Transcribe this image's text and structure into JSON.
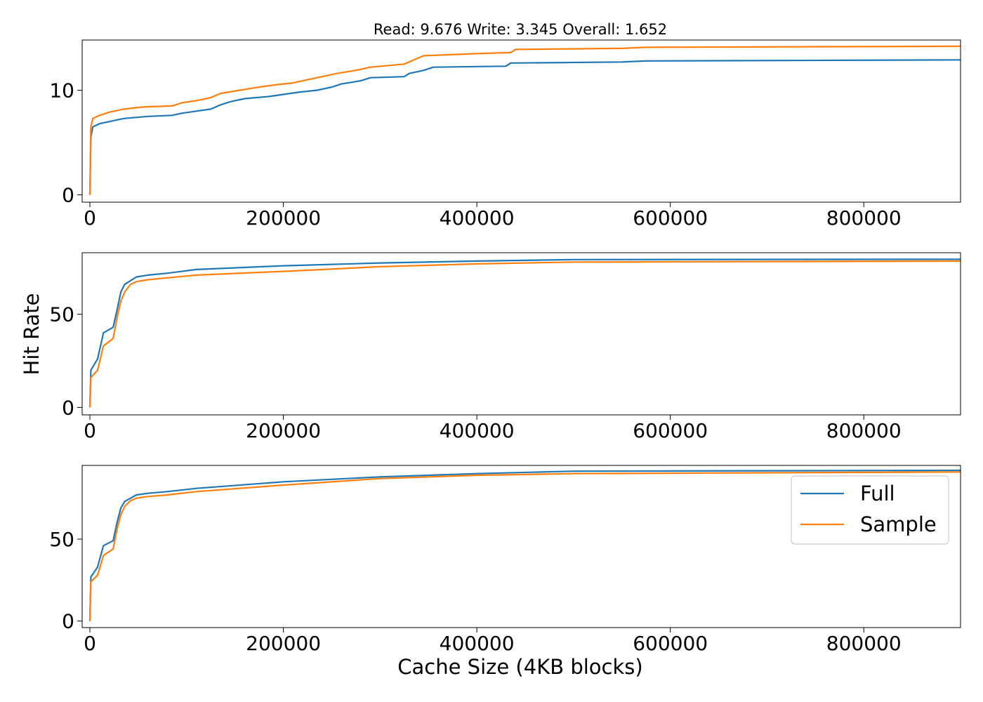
{
  "figure": {
    "title": "Read: 9.676 Write: 3.345 Overall: 1.652",
    "ylabel": "Hit Rate",
    "xlabel": "Cache Size (4KB blocks)"
  },
  "colors": {
    "full": "#1f77b4",
    "sample": "#ff7f0e"
  },
  "legend": {
    "placement": "upper-right of bottom panel",
    "items": [
      "Full",
      "Sample"
    ]
  },
  "chart_data": [
    {
      "type": "line",
      "panel": "top",
      "xlim": [
        -8000,
        900000
      ],
      "ylim": [
        -0.7,
        14.8
      ],
      "xticks": [
        0,
        200000,
        400000,
        600000,
        800000
      ],
      "yticks": [
        0,
        10
      ],
      "series": [
        {
          "name": "Full",
          "points": [
            [
              0,
              0
            ],
            [
              1000,
              5.5
            ],
            [
              3000,
              6.5
            ],
            [
              10000,
              6.8
            ],
            [
              20000,
              7.0
            ],
            [
              35000,
              7.3
            ],
            [
              60000,
              7.5
            ],
            [
              85000,
              7.6
            ],
            [
              95000,
              7.8
            ],
            [
              110000,
              8.0
            ],
            [
              125000,
              8.2
            ],
            [
              135000,
              8.6
            ],
            [
              145000,
              8.9
            ],
            [
              160000,
              9.2
            ],
            [
              185000,
              9.4
            ],
            [
              200000,
              9.6
            ],
            [
              215000,
              9.8
            ],
            [
              235000,
              10.0
            ],
            [
              250000,
              10.3
            ],
            [
              260000,
              10.6
            ],
            [
              280000,
              10.9
            ],
            [
              290000,
              11.2
            ],
            [
              325000,
              11.3
            ],
            [
              330000,
              11.6
            ],
            [
              345000,
              11.9
            ],
            [
              355000,
              12.2
            ],
            [
              430000,
              12.3
            ],
            [
              435000,
              12.6
            ],
            [
              550000,
              12.7
            ],
            [
              575000,
              12.8
            ],
            [
              900000,
              12.9
            ]
          ]
        },
        {
          "name": "Sample",
          "points": [
            [
              0,
              0
            ],
            [
              1000,
              6.5
            ],
            [
              3000,
              7.3
            ],
            [
              10000,
              7.6
            ],
            [
              20000,
              7.9
            ],
            [
              35000,
              8.2
            ],
            [
              55000,
              8.4
            ],
            [
              85000,
              8.5
            ],
            [
              95000,
              8.8
            ],
            [
              110000,
              9.0
            ],
            [
              125000,
              9.3
            ],
            [
              135000,
              9.7
            ],
            [
              155000,
              10.0
            ],
            [
              175000,
              10.3
            ],
            [
              190000,
              10.5
            ],
            [
              210000,
              10.7
            ],
            [
              225000,
              11.0
            ],
            [
              240000,
              11.3
            ],
            [
              255000,
              11.6
            ],
            [
              275000,
              11.9
            ],
            [
              290000,
              12.2
            ],
            [
              325000,
              12.5
            ],
            [
              335000,
              12.9
            ],
            [
              345000,
              13.3
            ],
            [
              400000,
              13.5
            ],
            [
              435000,
              13.6
            ],
            [
              440000,
              13.9
            ],
            [
              550000,
              14.0
            ],
            [
              575000,
              14.1
            ],
            [
              900000,
              14.2
            ]
          ]
        }
      ]
    },
    {
      "type": "line",
      "panel": "middle",
      "xlim": [
        -8000,
        900000
      ],
      "ylim": [
        -4,
        83
      ],
      "xticks": [
        0,
        200000,
        400000,
        600000,
        800000
      ],
      "yticks": [
        0,
        50
      ],
      "series": [
        {
          "name": "Full",
          "points": [
            [
              0,
              0
            ],
            [
              1000,
              20
            ],
            [
              8000,
              26
            ],
            [
              14000,
              40
            ],
            [
              24000,
              43
            ],
            [
              28000,
              52
            ],
            [
              32000,
              62
            ],
            [
              36000,
              66
            ],
            [
              42000,
              68
            ],
            [
              48000,
              70
            ],
            [
              60000,
              71
            ],
            [
              80000,
              72
            ],
            [
              110000,
              74
            ],
            [
              200000,
              76
            ],
            [
              300000,
              77.5
            ],
            [
              400000,
              78.5
            ],
            [
              500000,
              79.3
            ],
            [
              900000,
              79.5
            ]
          ]
        },
        {
          "name": "Sample",
          "points": [
            [
              0,
              0
            ],
            [
              1000,
              16
            ],
            [
              8000,
              20
            ],
            [
              14000,
              33
            ],
            [
              24000,
              37
            ],
            [
              28000,
              48
            ],
            [
              32000,
              57
            ],
            [
              36000,
              62
            ],
            [
              42000,
              66
            ],
            [
              48000,
              67.5
            ],
            [
              60000,
              68.5
            ],
            [
              80000,
              69.5
            ],
            [
              110000,
              71
            ],
            [
              200000,
              73
            ],
            [
              300000,
              75.5
            ],
            [
              400000,
              77
            ],
            [
              500000,
              78
            ],
            [
              900000,
              78.5
            ]
          ]
        }
      ]
    },
    {
      "type": "line",
      "panel": "bottom",
      "xlim": [
        -8000,
        900000
      ],
      "ylim": [
        -4,
        95
      ],
      "xticks": [
        0,
        200000,
        400000,
        600000,
        800000
      ],
      "yticks": [
        0,
        50
      ],
      "series": [
        {
          "name": "Full",
          "points": [
            [
              0,
              0
            ],
            [
              1000,
              27
            ],
            [
              8000,
              33
            ],
            [
              14000,
              46
            ],
            [
              24000,
              49
            ],
            [
              28000,
              60
            ],
            [
              32000,
              69
            ],
            [
              36000,
              73
            ],
            [
              42000,
              75
            ],
            [
              48000,
              77
            ],
            [
              60000,
              78
            ],
            [
              80000,
              79
            ],
            [
              110000,
              81
            ],
            [
              200000,
              85
            ],
            [
              300000,
              88
            ],
            [
              400000,
              90
            ],
            [
              500000,
              91.5
            ],
            [
              900000,
              92
            ]
          ]
        },
        {
          "name": "Sample",
          "points": [
            [
              0,
              0
            ],
            [
              1000,
              24
            ],
            [
              8000,
              28
            ],
            [
              14000,
              40
            ],
            [
              24000,
              44
            ],
            [
              28000,
              56
            ],
            [
              32000,
              65
            ],
            [
              36000,
              70
            ],
            [
              42000,
              73.5
            ],
            [
              48000,
              75
            ],
            [
              60000,
              76
            ],
            [
              80000,
              77
            ],
            [
              110000,
              79
            ],
            [
              200000,
              83
            ],
            [
              300000,
              87
            ],
            [
              400000,
              89
            ],
            [
              500000,
              90
            ],
            [
              900000,
              91
            ]
          ]
        }
      ]
    }
  ]
}
